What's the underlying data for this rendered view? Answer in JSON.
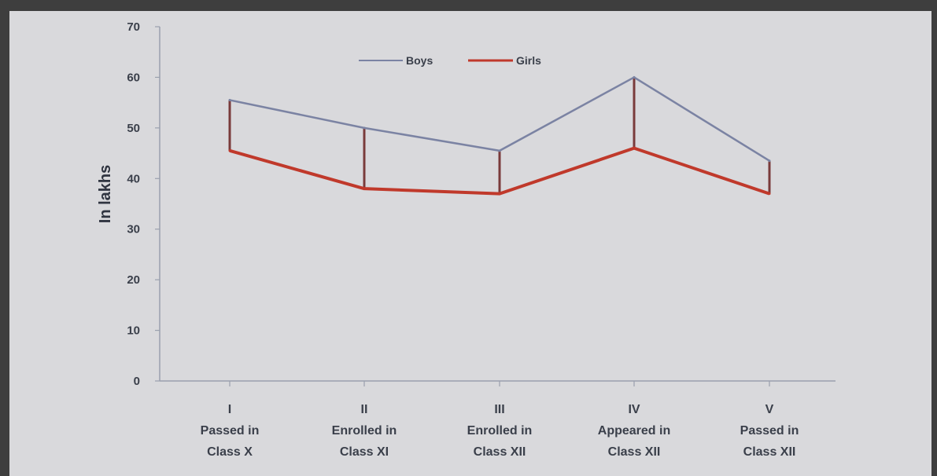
{
  "chart_data": {
    "type": "line",
    "ylabel": "In lakhs",
    "xlabel": "",
    "ylim": [
      0,
      70
    ],
    "yticks": [
      0,
      10,
      20,
      30,
      40,
      50,
      60,
      70
    ],
    "categories": [
      [
        "I",
        "Passed in",
        "Class X"
      ],
      [
        "II",
        "Enrolled in",
        "Class XI"
      ],
      [
        "III",
        "Enrolled in",
        "Class XII"
      ],
      [
        "IV",
        "Appeared in",
        "Class XII"
      ],
      [
        "V",
        "Passed in",
        "Class XII"
      ]
    ],
    "series": [
      {
        "name": "Boys",
        "values": [
          55.5,
          50,
          45.5,
          60,
          43.5
        ],
        "color": "#7b83a3"
      },
      {
        "name": "Girls",
        "values": [
          45.5,
          38,
          37,
          46,
          37
        ],
        "color": "#c0392b"
      }
    ],
    "connector_color": "#7a3b3b",
    "grid": false,
    "legend_position": "top-center"
  }
}
